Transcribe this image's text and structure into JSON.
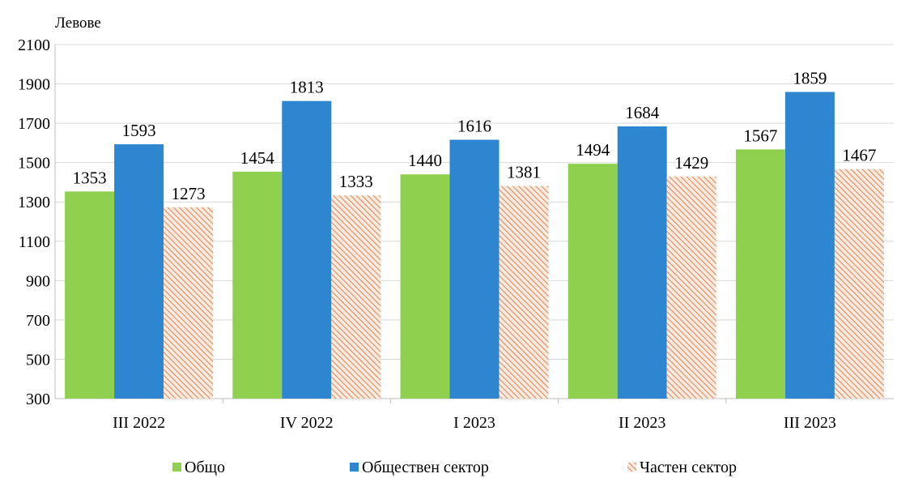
{
  "chart_data": {
    "type": "bar",
    "ylabel": "Левове",
    "ylim": [
      300,
      2100
    ],
    "yticks": [
      300,
      500,
      700,
      900,
      1100,
      1300,
      1500,
      1700,
      1900,
      2100
    ],
    "categories": [
      "III 2022",
      "IV 2022",
      "I 2023",
      "II 2023",
      "III 2023"
    ],
    "series": [
      {
        "name": "Общо",
        "values": [
          1353,
          1454,
          1440,
          1494,
          1567
        ],
        "color": "#8fd14f",
        "pattern": "solid"
      },
      {
        "name": "Обществен сектор",
        "values": [
          1593,
          1813,
          1616,
          1684,
          1859
        ],
        "color": "#2e86d0",
        "pattern": "solid"
      },
      {
        "name": "Частен сектор",
        "values": [
          1273,
          1333,
          1381,
          1429,
          1467
        ],
        "color": "#e2a27e",
        "pattern": "diagonal-hatch"
      }
    ],
    "legend_position": "bottom",
    "grid": "horizontal"
  }
}
